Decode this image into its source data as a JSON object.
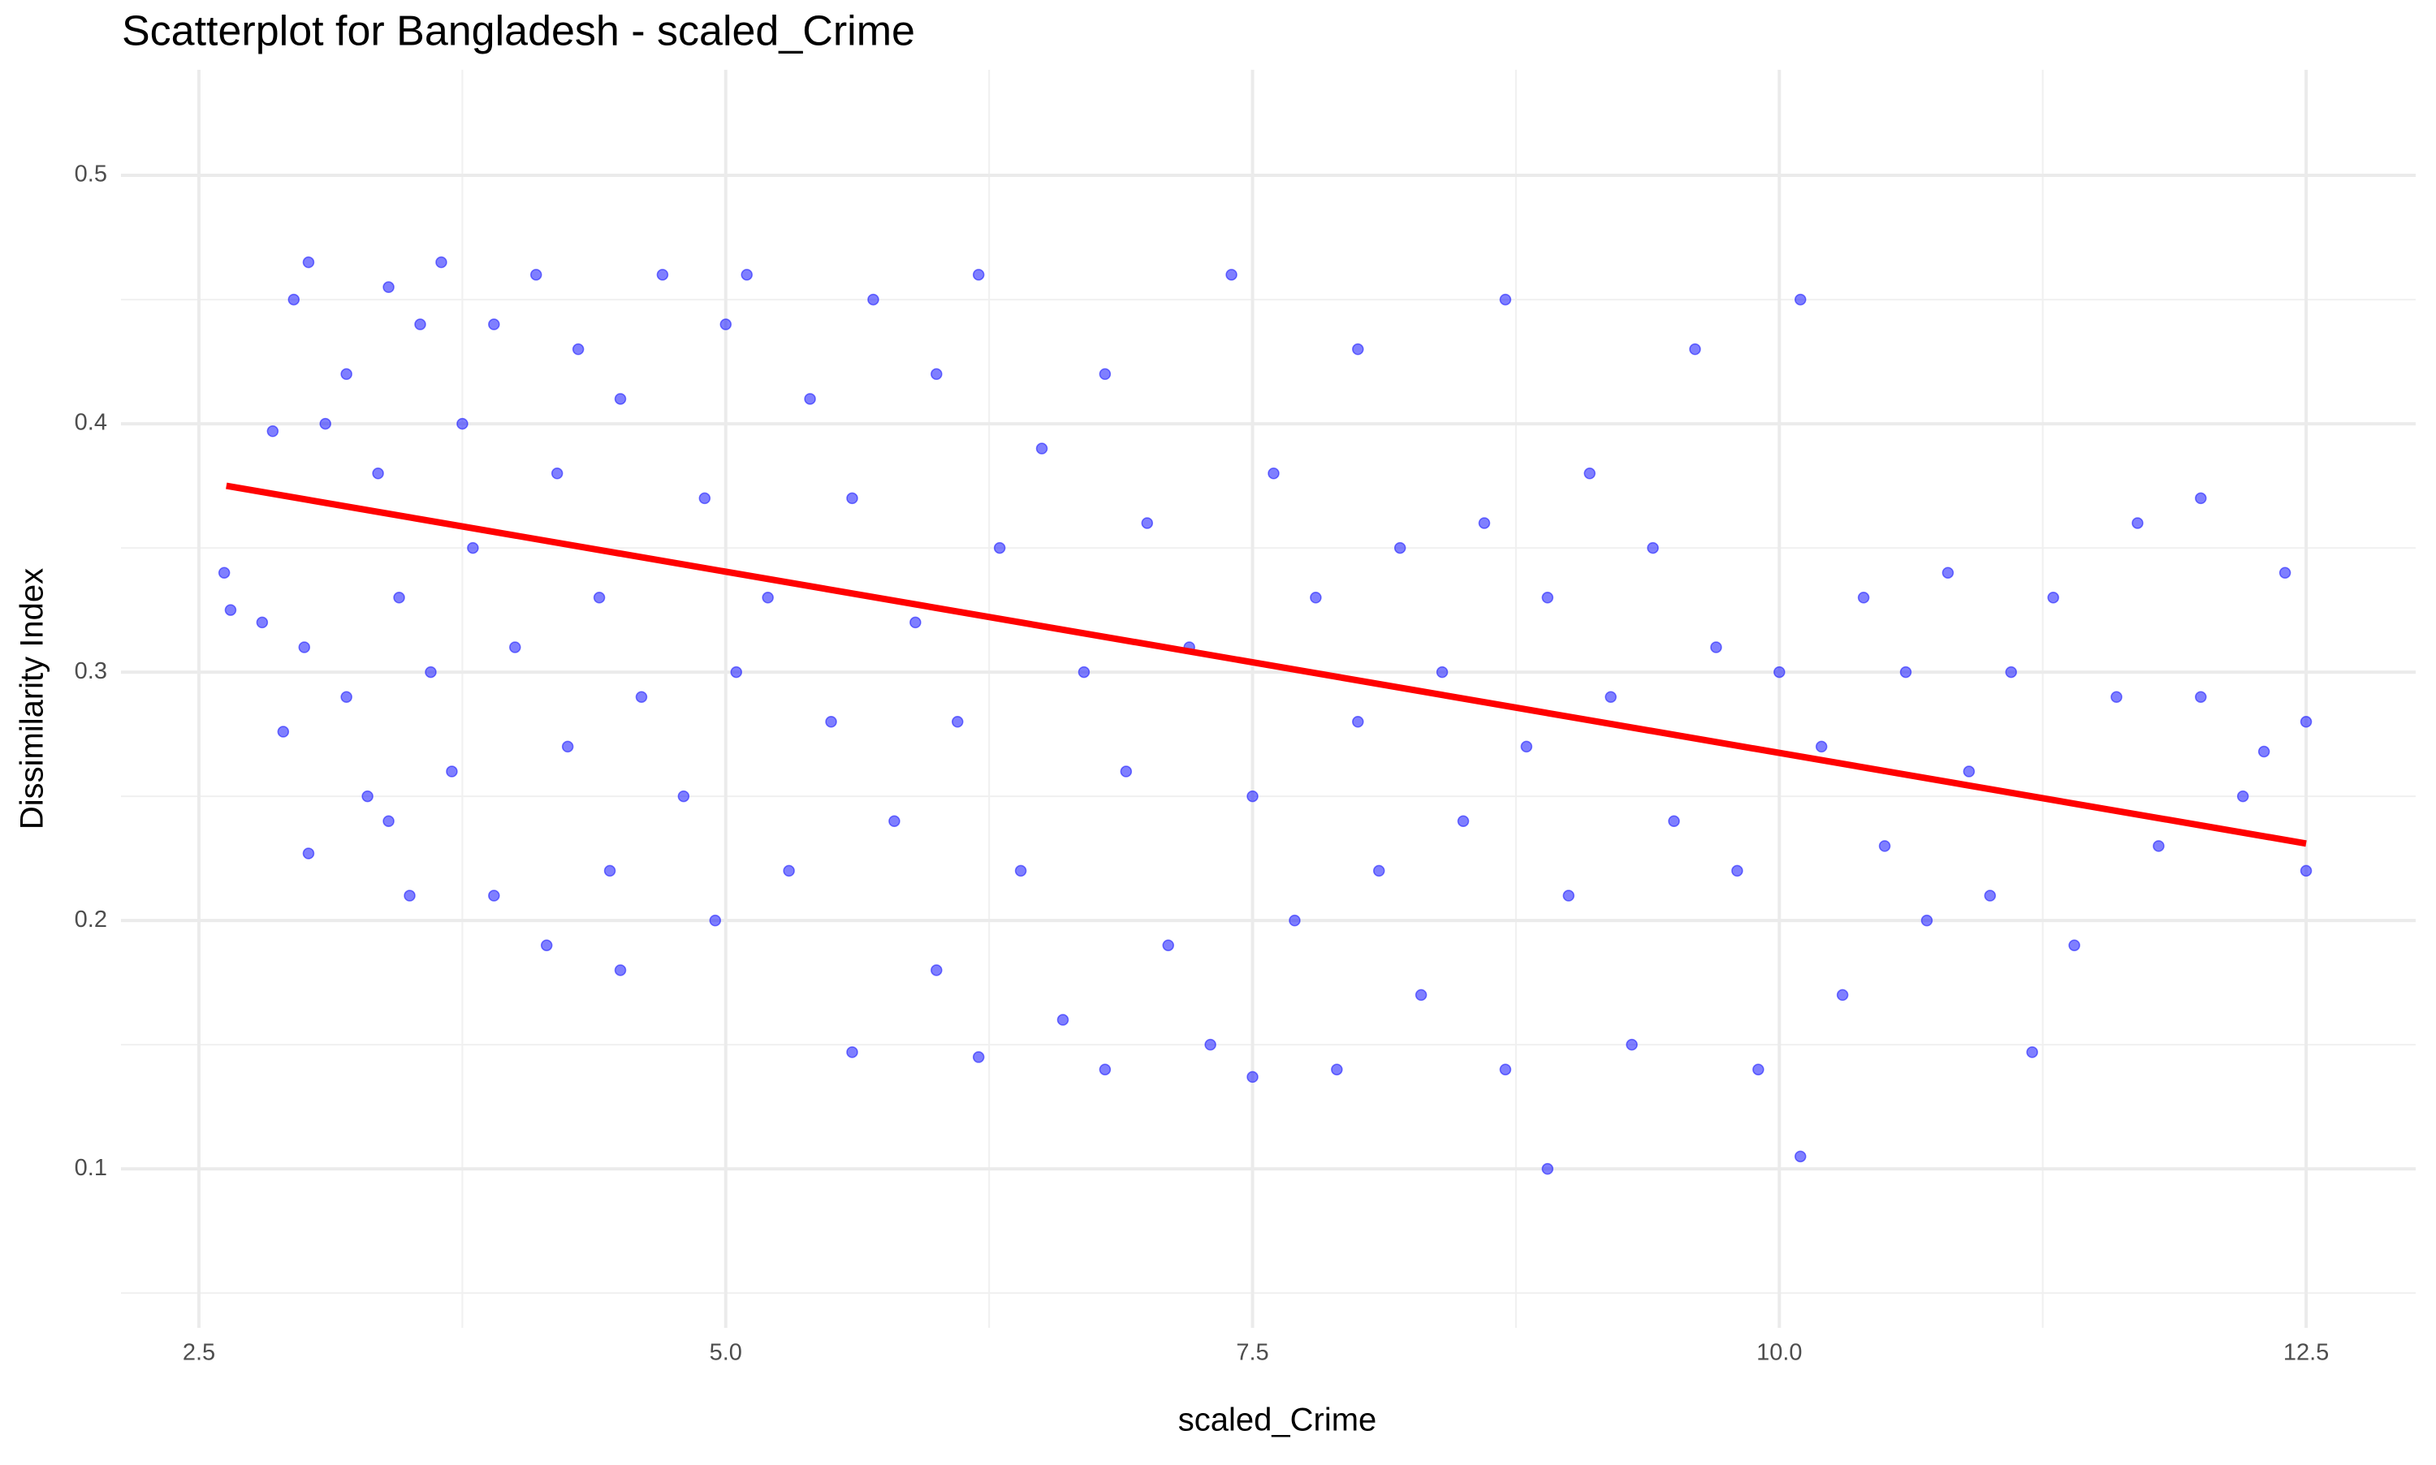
{
  "chart_data": {
    "type": "scatter",
    "title": "Scatterplot for Bangladesh - scaled_Crime",
    "x_label": "scaled_Crime",
    "y_label": "Dissimilarity Index",
    "color": "#0000ff",
    "grid": true,
    "xlim": [
      2.13,
      13.02
    ],
    "ylim": [
      0.036,
      0.5425
    ],
    "xticks": [
      2.5,
      {
        "value": 5,
        "label": "5.0"
      },
      7.5,
      {
        "value": 10,
        "label": "10.0"
      },
      12.5
    ],
    "yticks": [
      0.1,
      0.2,
      0.3,
      0.4,
      0.5
    ],
    "x_minor_ticks": [
      3.75,
      6.25,
      8.75,
      11.25
    ],
    "y_minor_ticks": [
      0.05,
      0.15,
      0.25,
      0.35,
      0.45
    ],
    "x": [
      2.62,
      2.65,
      2.8,
      2.85,
      2.9,
      2.95,
      3.0,
      3.02,
      3.02,
      3.1,
      3.2,
      3.2,
      3.3,
      3.35,
      3.4,
      3.4,
      3.45,
      3.5,
      3.55,
      3.6,
      3.65,
      3.7,
      3.75,
      3.8,
      3.9,
      3.9,
      4.0,
      4.1,
      4.15,
      4.2,
      4.25,
      4.3,
      4.4,
      4.45,
      4.5,
      4.5,
      4.6,
      4.7,
      4.8,
      4.9,
      4.95,
      5.0,
      5.05,
      5.1,
      5.2,
      5.3,
      5.4,
      5.5,
      5.6,
      5.6,
      5.7,
      5.8,
      5.9,
      6.0,
      6.0,
      6.1,
      6.2,
      6.2,
      6.3,
      6.4,
      6.5,
      6.6,
      6.7,
      6.8,
      6.8,
      6.9,
      7.0,
      7.1,
      7.2,
      7.3,
      7.4,
      7.5,
      7.5,
      7.6,
      7.7,
      7.8,
      7.9,
      8.0,
      8.0,
      8.1,
      8.2,
      8.3,
      8.4,
      8.5,
      8.6,
      8.7,
      8.7,
      8.8,
      8.9,
      8.9,
      9.0,
      9.1,
      9.2,
      9.3,
      9.4,
      9.5,
      9.6,
      9.7,
      9.8,
      9.9,
      10.0,
      10.1,
      10.1,
      10.2,
      10.3,
      10.4,
      10.5,
      10.6,
      10.7,
      10.8,
      10.9,
      11.0,
      11.1,
      11.2,
      11.3,
      11.4,
      11.6,
      11.7,
      11.8,
      12.0,
      12.0,
      12.2,
      12.3,
      12.4,
      12.5,
      12.5
    ],
    "y": [
      0.34,
      0.325,
      0.32,
      0.397,
      0.276,
      0.45,
      0.31,
      0.465,
      0.227,
      0.4,
      0.29,
      0.42,
      0.25,
      0.38,
      0.24,
      0.455,
      0.33,
      0.21,
      0.44,
      0.3,
      0.465,
      0.26,
      0.4,
      0.35,
      0.21,
      0.44,
      0.31,
      0.46,
      0.19,
      0.38,
      0.27,
      0.43,
      0.33,
      0.22,
      0.18,
      0.41,
      0.29,
      0.46,
      0.25,
      0.37,
      0.2,
      0.44,
      0.3,
      0.46,
      0.33,
      0.22,
      0.41,
      0.28,
      0.147,
      0.37,
      0.45,
      0.24,
      0.32,
      0.18,
      0.42,
      0.28,
      0.145,
      0.46,
      0.35,
      0.22,
      0.39,
      0.16,
      0.3,
      0.14,
      0.42,
      0.26,
      0.36,
      0.19,
      0.31,
      0.15,
      0.46,
      0.25,
      0.137,
      0.38,
      0.2,
      0.33,
      0.14,
      0.28,
      0.43,
      0.22,
      0.35,
      0.17,
      0.3,
      0.24,
      0.36,
      0.45,
      0.14,
      0.27,
      0.1,
      0.33,
      0.21,
      0.38,
      0.29,
      0.15,
      0.35,
      0.24,
      0.43,
      0.31,
      0.22,
      0.14,
      0.3,
      0.105,
      0.45,
      0.27,
      0.17,
      0.33,
      0.23,
      0.3,
      0.2,
      0.34,
      0.26,
      0.21,
      0.3,
      0.147,
      0.33,
      0.19,
      0.29,
      0.36,
      0.23,
      0.37,
      0.29,
      0.25,
      0.268,
      0.34,
      0.22,
      0.28
    ],
    "trend_line": {
      "color": "#ff0000",
      "x": [
        2.63,
        12.5
      ],
      "y": [
        0.375,
        0.231
      ]
    }
  }
}
